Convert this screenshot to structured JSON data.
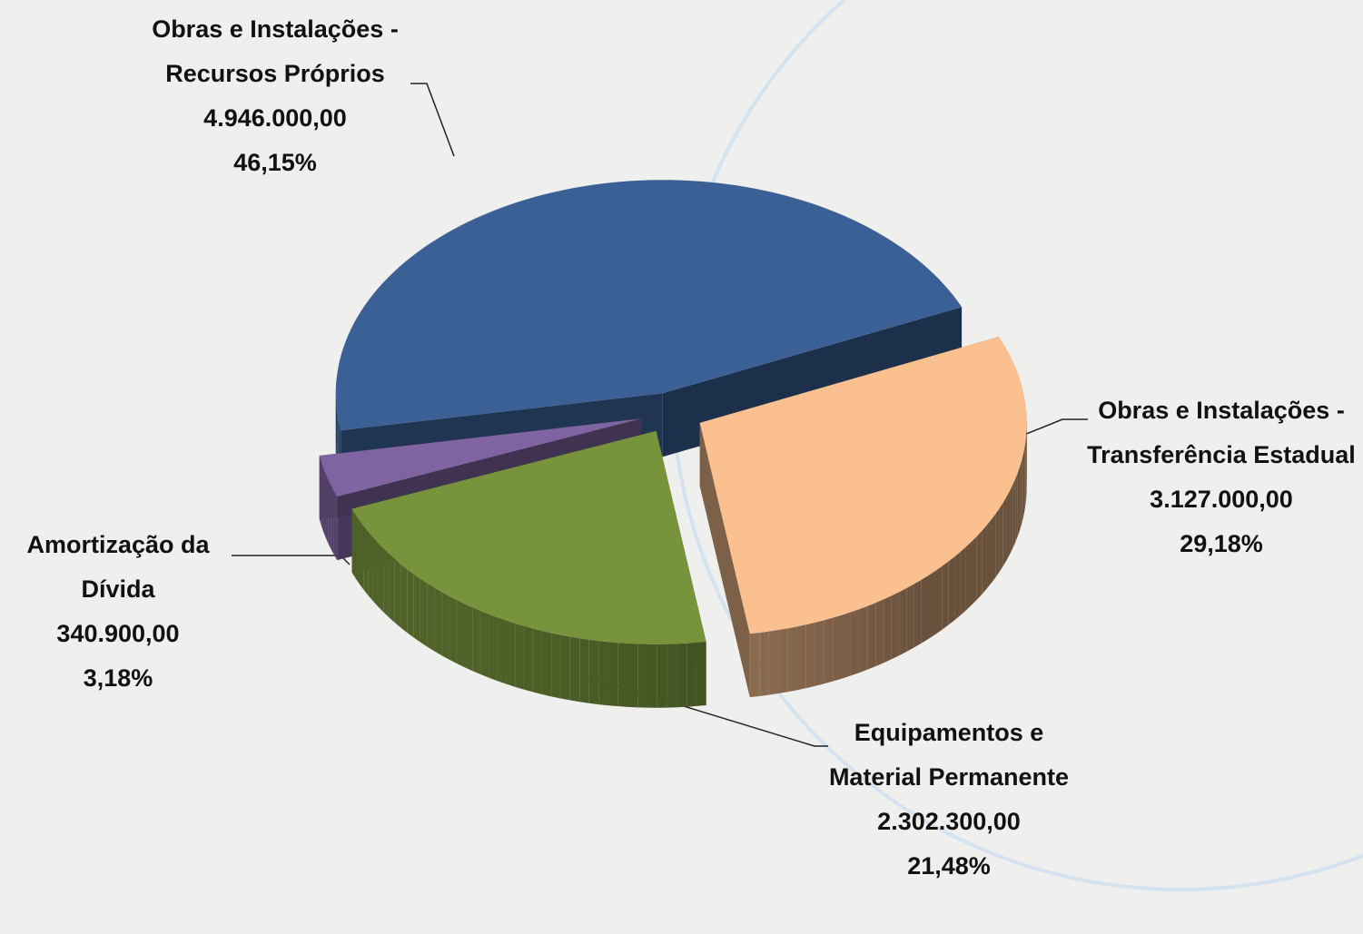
{
  "chart_data": {
    "type": "pie",
    "categories": [
      "Obras e Instalações - Recursos Próprios",
      "Obras e Instalações - Transferência Estadual",
      "Equipamentos  e Material Permanente",
      "Amortização da Dívida"
    ],
    "values": [
      4946000,
      3127000,
      2302300,
      340900
    ],
    "value_labels": [
      "4.946.000,00",
      "3.127.000,00",
      "2.302.300,00",
      "340.900,00"
    ],
    "percents": [
      46.15,
      29.18,
      21.48,
      3.18
    ],
    "percent_labels": [
      "46,15%",
      "29,18%",
      "21,48%",
      "3,18%"
    ],
    "colors": [
      "#3a6095",
      "#fac090",
      "#77933c",
      "#8064a2"
    ]
  }
}
